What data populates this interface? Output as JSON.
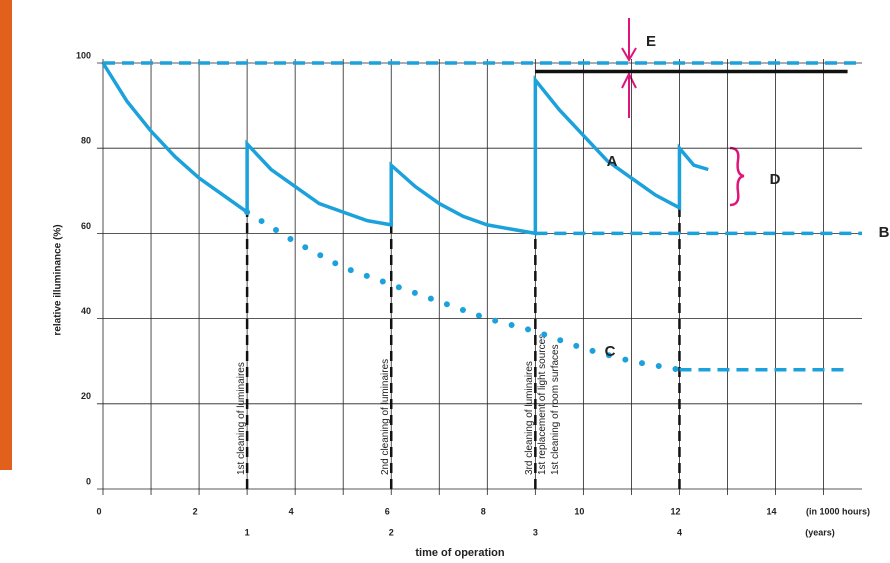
{
  "chart_data": {
    "type": "line",
    "y_label": "relative illuminance (%)",
    "x_label": "time of operation",
    "x_unit_label": "(in 1000 hours)",
    "x2_unit_label": "(years)",
    "xlim": [
      0,
      15.8
    ],
    "ylim": [
      0,
      100
    ],
    "xticks": [
      0,
      2,
      4,
      6,
      8,
      10,
      12,
      14
    ],
    "x2ticks": [
      {
        "value": 3,
        "label": "1"
      },
      {
        "value": 6,
        "label": "2"
      },
      {
        "value": 9,
        "label": "3"
      },
      {
        "value": 12,
        "label": "4"
      }
    ],
    "xgrid": [
      0,
      1,
      2,
      3,
      4,
      5,
      6,
      7,
      8,
      9,
      10,
      11,
      12,
      13,
      14,
      15
    ],
    "yticks": [
      0,
      20,
      40,
      60,
      80,
      100
    ],
    "grid": true,
    "series": [
      {
        "color": "#1ba1db",
        "style": "solid",
        "x": [
          0,
          0.5,
          1,
          1.5,
          2,
          2.5,
          3,
          3,
          3.5,
          4,
          4.5,
          5,
          5.5,
          6,
          6,
          6.5,
          7,
          7.5,
          8,
          8.5,
          9,
          9,
          9.5,
          10,
          10.5,
          11,
          11.5,
          12,
          12,
          12.3,
          12.6
        ],
        "values": [
          100,
          91,
          84,
          78,
          73,
          69,
          65,
          81,
          75,
          71,
          67,
          65,
          63,
          62,
          76,
          71,
          67,
          64,
          62,
          61,
          60,
          96,
          89,
          83,
          77,
          73,
          69,
          66,
          80,
          76,
          75
        ]
      },
      {
        "color": "#1ba1db",
        "style": "dotted",
        "x": [
          3,
          4,
          5,
          6,
          7,
          8,
          9,
          10,
          11,
          12
        ],
        "values": [
          65,
          58,
          52,
          48,
          44,
          40,
          37,
          33,
          30,
          28
        ]
      },
      {
        "color": "#1ba1db",
        "style": "dashed",
        "x": [
          12,
          15.5
        ],
        "values": [
          28,
          28
        ]
      },
      {
        "color": "#1ba1db",
        "style": "dashed",
        "x": [
          9,
          15.8
        ],
        "values": [
          60,
          60
        ]
      },
      {
        "color": "#1ba1db",
        "style": "dashed",
        "x": [
          0,
          15.8
        ],
        "values": [
          100,
          100
        ]
      },
      {
        "color": "#111111",
        "style": "solid",
        "x": [
          9,
          15.5
        ],
        "values": [
          98,
          98
        ]
      }
    ],
    "events": [
      {
        "x": 3,
        "lines": [
          "1st cleaning of luminaires"
        ]
      },
      {
        "x": 6,
        "lines": [
          "2nd cleaning of luminaires"
        ]
      },
      {
        "x": 9,
        "lines": [
          "3rd cleaning of luminaires",
          "1st replacement of light sources",
          "1st cleaning of room surfaces"
        ]
      },
      {
        "x": 12,
        "lines": []
      }
    ],
    "annotations": [
      "A",
      "B",
      "C",
      "D",
      "E"
    ]
  }
}
